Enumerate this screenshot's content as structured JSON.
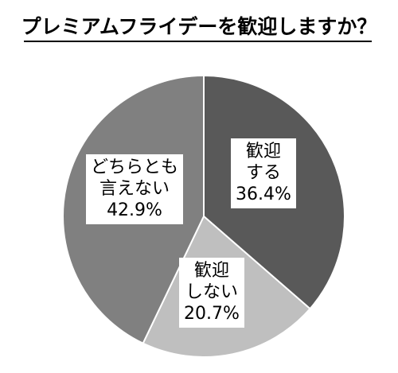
{
  "title": "プレミアムフライデーを歓迎しますか？",
  "chart_data": {
    "type": "pie",
    "title": "プレミアムフライデーを歓迎しますか？",
    "start_angle_deg": 0,
    "direction": "clockwise",
    "slices": [
      {
        "label_lines": [
          "歓迎",
          "する"
        ],
        "value": 36.4,
        "value_text": "36.4%",
        "color": "#595959"
      },
      {
        "label_lines": [
          "歓迎",
          "しない"
        ],
        "value": 20.7,
        "value_text": "20.7%",
        "color": "#bfbfbf"
      },
      {
        "label_lines": [
          "どちらとも",
          "言えない"
        ],
        "value": 42.9,
        "value_text": "42.9%",
        "color": "#808080"
      }
    ]
  }
}
